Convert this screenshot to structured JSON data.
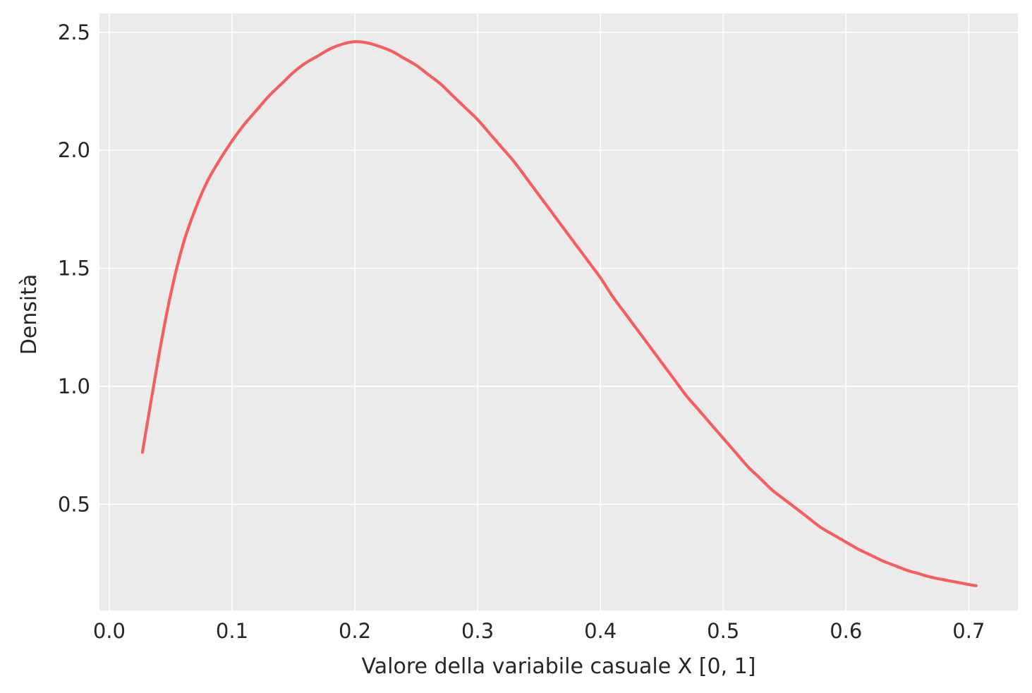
{
  "chart_data": {
    "type": "line",
    "title": "",
    "xlabel": "Valore della variabile casuale X [0, 1]",
    "ylabel": "Densità",
    "xlim": [
      -0.008,
      0.74
    ],
    "ylim": [
      0.05,
      2.58
    ],
    "x_ticks": [
      0.0,
      0.1,
      0.2,
      0.3,
      0.4,
      0.5,
      0.6,
      0.7
    ],
    "x_tick_labels": [
      "0.0",
      "0.1",
      "0.2",
      "0.3",
      "0.4",
      "0.5",
      "0.6",
      "0.7"
    ],
    "y_ticks": [
      0.5,
      1.0,
      1.5,
      2.0,
      2.5
    ],
    "y_tick_labels": [
      "0.5",
      "1.0",
      "1.5",
      "2.0",
      "2.5"
    ],
    "grid": true,
    "background_color": "#ebebeb",
    "grid_color": "#ffffff",
    "series": [
      {
        "color": "#f55e61",
        "x": [
          0.027,
          0.04,
          0.05,
          0.06,
          0.07,
          0.08,
          0.09,
          0.1,
          0.11,
          0.12,
          0.13,
          0.14,
          0.15,
          0.16,
          0.17,
          0.18,
          0.19,
          0.2,
          0.21,
          0.22,
          0.23,
          0.24,
          0.25,
          0.26,
          0.27,
          0.28,
          0.29,
          0.3,
          0.31,
          0.32,
          0.33,
          0.34,
          0.35,
          0.36,
          0.37,
          0.38,
          0.39,
          0.4,
          0.41,
          0.42,
          0.43,
          0.44,
          0.45,
          0.46,
          0.47,
          0.48,
          0.49,
          0.5,
          0.51,
          0.52,
          0.53,
          0.54,
          0.55,
          0.56,
          0.57,
          0.58,
          0.59,
          0.6,
          0.61,
          0.62,
          0.63,
          0.64,
          0.65,
          0.66,
          0.67,
          0.68,
          0.69,
          0.7,
          0.706
        ],
        "y": [
          0.72,
          1.12,
          1.39,
          1.6,
          1.75,
          1.87,
          1.96,
          2.04,
          2.11,
          2.17,
          2.23,
          2.28,
          2.33,
          2.37,
          2.4,
          2.43,
          2.45,
          2.46,
          2.455,
          2.44,
          2.42,
          2.39,
          2.36,
          2.32,
          2.28,
          2.23,
          2.18,
          2.13,
          2.07,
          2.01,
          1.95,
          1.88,
          1.81,
          1.74,
          1.67,
          1.6,
          1.53,
          1.46,
          1.38,
          1.31,
          1.24,
          1.17,
          1.1,
          1.03,
          0.96,
          0.9,
          0.84,
          0.78,
          0.72,
          0.66,
          0.61,
          0.56,
          0.52,
          0.48,
          0.44,
          0.4,
          0.37,
          0.34,
          0.31,
          0.285,
          0.26,
          0.24,
          0.22,
          0.205,
          0.19,
          0.18,
          0.17,
          0.16,
          0.155
        ]
      }
    ]
  }
}
